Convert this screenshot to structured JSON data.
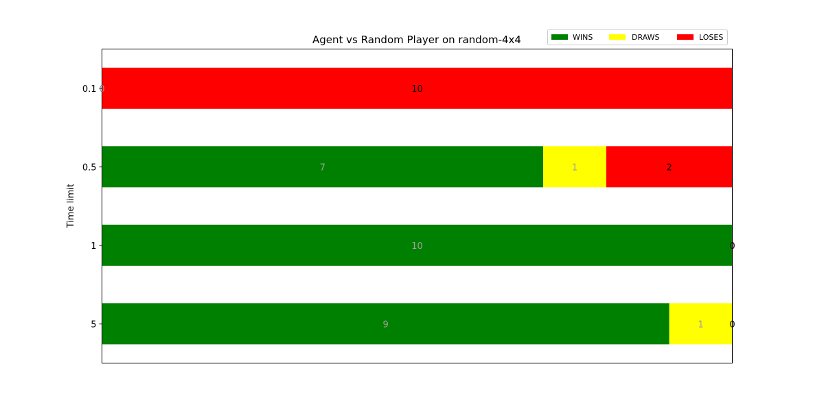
{
  "chart_data": {
    "type": "bar",
    "orientation": "horizontal",
    "stacked": true,
    "title": "Agent vs Random Player on random-4x4",
    "xlabel": "",
    "ylabel": "Time limit",
    "categories": [
      "0.1",
      "0.5",
      "1",
      "5"
    ],
    "series": [
      {
        "name": "WINS",
        "color": "#008000",
        "label_color": "#a0a0a0",
        "values": [
          0,
          7,
          10,
          9
        ]
      },
      {
        "name": "DRAWS",
        "color": "#ffff00",
        "label_color": "#a0a0a0",
        "values": [
          0,
          1,
          0,
          1
        ]
      },
      {
        "name": "LOSES",
        "color": "#ff0000",
        "label_color": "#000000",
        "values": [
          10,
          2,
          0,
          0
        ]
      }
    ],
    "xlim": [
      0,
      10
    ],
    "x_ticks_visible": false,
    "grid": false,
    "legend": {
      "placement": "top-right",
      "entries": [
        "WINS",
        "DRAWS",
        "LOSES"
      ]
    }
  }
}
